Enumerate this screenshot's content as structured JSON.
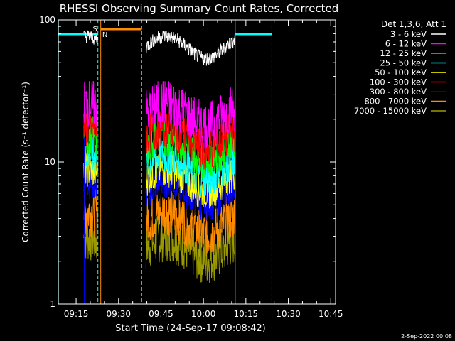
{
  "chart_data": {
    "type": "line",
    "title": "RHESSI Observing Summary Count Rates, Corrected",
    "xlabel": "Start Time (24-Sep-17 09:08:42)",
    "ylabel": "Corrected Count Rate (s⁻¹ detector⁻¹)",
    "yscale": "log",
    "ylim": [
      1,
      100
    ],
    "xlim_minutes": [
      0,
      98
    ],
    "x_ticks": [
      "09:15",
      "09:30",
      "09:45",
      "10:00",
      "10:15",
      "10:30",
      "10:45"
    ],
    "y_ticks": [
      "1",
      "10",
      "100"
    ],
    "legend_header": "Det 1,3,6, Att 1",
    "legend_position": "right",
    "series": [
      {
        "name": "3 - 6 keV",
        "color": "#ffffff",
        "level": 65
      },
      {
        "name": "6 - 12 keV",
        "color": "#ff00ff",
        "level": 22
      },
      {
        "name": "12 - 25 keV",
        "color": "#00ff00",
        "level": 13
      },
      {
        "name": "25 - 50 keV",
        "color": "#00ffff",
        "level": 9.5
      },
      {
        "name": "50 - 100 keV",
        "color": "#ffff00",
        "level": 7.5
      },
      {
        "name": "100 - 300 keV",
        "color": "#ff0000",
        "level": 15
      },
      {
        "name": "300 - 800 keV",
        "color": "#0000ff",
        "level": 6.2
      },
      {
        "name": "800 - 7000 keV",
        "color": "#ff8c00",
        "level": 3.8
      },
      {
        "name": "7000 - 15000 keV",
        "color": "#9a9a00",
        "level": 2.5
      }
    ],
    "markers": [
      {
        "label": "S",
        "color": "#ff8c00"
      },
      {
        "label": "N",
        "color": "#00ffff"
      }
    ],
    "footer_date": "2-Sep-2022 00:08"
  }
}
